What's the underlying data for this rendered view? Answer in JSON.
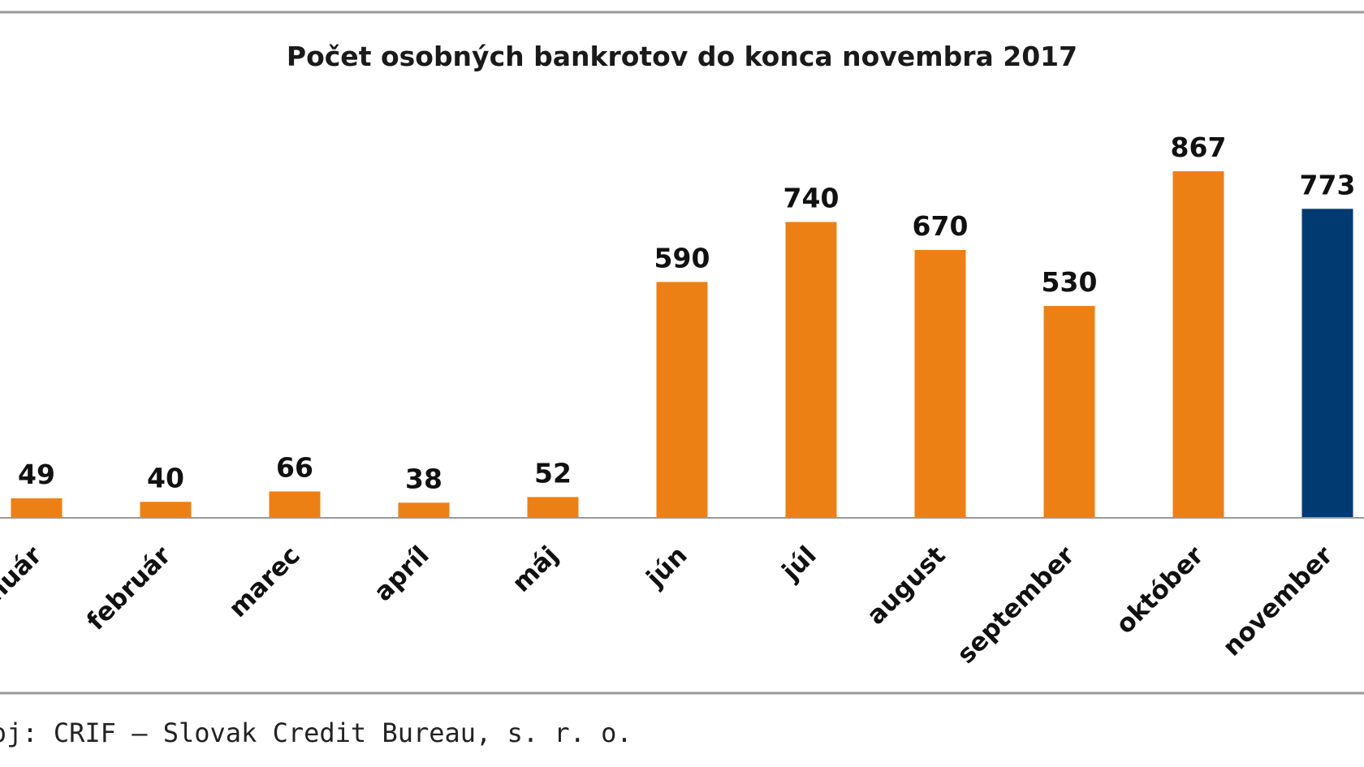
{
  "chart_data": {
    "type": "bar",
    "title": "Počet osobných bankrotov do konca novembra 2017",
    "xlabel": "",
    "ylabel": "",
    "categories": [
      "január",
      "február",
      "marec",
      "apríl",
      "máj",
      "jún",
      "júl",
      "august",
      "september",
      "október",
      "november"
    ],
    "values": [
      49,
      40,
      66,
      38,
      52,
      590,
      740,
      670,
      530,
      867,
      773
    ],
    "ylim": [
      0,
      867
    ],
    "grid": false,
    "legend": "none",
    "colors": {
      "default_bar": "#ED8015",
      "highlight_bar": "#003A70",
      "frame": "#999999",
      "axis": "#999999"
    },
    "highlight_index": 10
  },
  "source": "Zdroj: CRIF – Slovak Credit Bureau, s. r. o."
}
